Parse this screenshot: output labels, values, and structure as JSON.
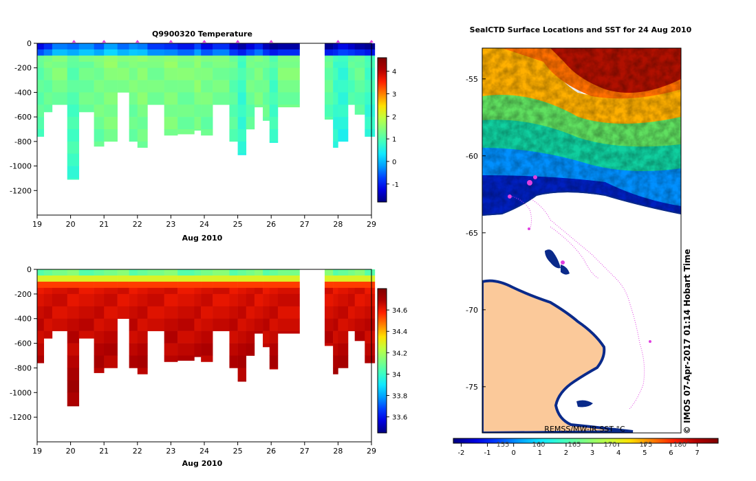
{
  "colors": {
    "jet": [
      "#00007f",
      "#0000e0",
      "#0040ff",
      "#00a0ff",
      "#10e8ff",
      "#40ffbf",
      "#80ff80",
      "#c0ff40",
      "#ffe000",
      "#ff8000",
      "#ff2000",
      "#b00000",
      "#7f0000"
    ],
    "land": "#fbc99a",
    "ice_edge": "#0a2a8a",
    "track": "#e040e0"
  },
  "chart_data": [
    {
      "id": "temperature-section",
      "type": "heatmap",
      "title": "Q9900320  Temperature",
      "xlabel": "Aug 2010",
      "ylabel": "",
      "xlim": [
        19,
        29
      ],
      "ylim": [
        -1400,
        0
      ],
      "xticks": [
        "19",
        "20",
        "21",
        "22",
        "23",
        "24",
        "25",
        "26",
        "27",
        "28",
        "29"
      ],
      "yticks": [
        "0",
        "-200",
        "-400",
        "-600",
        "-800",
        "-1000",
        "-1200"
      ],
      "colorbar": {
        "range": [
          -1.8,
          4.6
        ],
        "ticks": [
          "4",
          "3",
          "2",
          "1",
          "0",
          "-1"
        ]
      },
      "surface_markers_day": [
        20.1,
        21.0,
        22.0,
        23.0,
        24.0,
        25.0,
        26.0,
        28.0,
        29.0
      ],
      "gap_days": [
        26.85,
        27.6
      ],
      "profiles": [
        {
          "x0": 19.0,
          "x1": 19.2,
          "bottom": -760,
          "surface": -1.2,
          "deep": 1.2
        },
        {
          "x0": 19.2,
          "x1": 19.45,
          "bottom": -560,
          "surface": -0.9,
          "deep": 1.3
        },
        {
          "x0": 19.45,
          "x1": 19.9,
          "bottom": -500,
          "surface": -0.4,
          "deep": 1.4
        },
        {
          "x0": 19.9,
          "x1": 20.25,
          "bottom": -1110,
          "surface": -0.5,
          "deep": 1.1
        },
        {
          "x0": 20.25,
          "x1": 20.7,
          "bottom": -560,
          "surface": -0.3,
          "deep": 1.3
        },
        {
          "x0": 20.7,
          "x1": 21.0,
          "bottom": -840,
          "surface": -0.6,
          "deep": 1.4
        },
        {
          "x0": 21.0,
          "x1": 21.4,
          "bottom": -800,
          "surface": -0.2,
          "deep": 1.5
        },
        {
          "x0": 21.4,
          "x1": 21.75,
          "bottom": -400,
          "surface": -0.5,
          "deep": 1.4
        },
        {
          "x0": 21.75,
          "x1": 22.0,
          "bottom": -800,
          "surface": -0.3,
          "deep": 1.4
        },
        {
          "x0": 22.0,
          "x1": 22.3,
          "bottom": -850,
          "surface": -0.4,
          "deep": 1.5
        },
        {
          "x0": 22.3,
          "x1": 22.8,
          "bottom": -500,
          "surface": -0.8,
          "deep": 1.4
        },
        {
          "x0": 22.8,
          "x1": 23.2,
          "bottom": -750,
          "surface": -0.9,
          "deep": 1.5
        },
        {
          "x0": 23.2,
          "x1": 23.7,
          "bottom": -740,
          "surface": -1.1,
          "deep": 1.4
        },
        {
          "x0": 23.7,
          "x1": 23.9,
          "bottom": -710,
          "surface": -0.7,
          "deep": 1.5
        },
        {
          "x0": 23.9,
          "x1": 24.25,
          "bottom": -750,
          "surface": -1.2,
          "deep": 1.4
        },
        {
          "x0": 24.25,
          "x1": 24.75,
          "bottom": -500,
          "surface": -0.9,
          "deep": 1.4
        },
        {
          "x0": 24.75,
          "x1": 25.0,
          "bottom": -800,
          "surface": -1.4,
          "deep": 1.2
        },
        {
          "x0": 25.0,
          "x1": 25.25,
          "bottom": -910,
          "surface": -1.6,
          "deep": 0.9
        },
        {
          "x0": 25.25,
          "x1": 25.5,
          "bottom": -700,
          "surface": -1.3,
          "deep": 1.3
        },
        {
          "x0": 25.5,
          "x1": 25.75,
          "bottom": -520,
          "surface": -1.0,
          "deep": 1.4
        },
        {
          "x0": 25.75,
          "x1": 25.95,
          "bottom": -630,
          "surface": -1.5,
          "deep": 1.3
        },
        {
          "x0": 25.95,
          "x1": 26.2,
          "bottom": -810,
          "surface": -1.7,
          "deep": 1.0
        },
        {
          "x0": 26.2,
          "x1": 26.85,
          "bottom": -520,
          "surface": -1.6,
          "deep": 1.4
        },
        {
          "x0": 27.6,
          "x1": 27.85,
          "bottom": -620,
          "surface": -1.7,
          "deep": 1.2
        },
        {
          "x0": 27.85,
          "x1": 28.0,
          "bottom": -850,
          "surface": -1.5,
          "deep": 0.9
        },
        {
          "x0": 28.0,
          "x1": 28.3,
          "bottom": -800,
          "surface": -1.2,
          "deep": 0.8
        },
        {
          "x0": 28.3,
          "x1": 28.5,
          "bottom": -500,
          "surface": -1.4,
          "deep": 1.1
        },
        {
          "x0": 28.5,
          "x1": 28.8,
          "bottom": -580,
          "surface": -1.6,
          "deep": 1.2
        },
        {
          "x0": 28.8,
          "x1": 29.1,
          "bottom": -760,
          "surface": -1.7,
          "deep": 0.9
        }
      ]
    },
    {
      "id": "salinity-section",
      "type": "heatmap",
      "title": "",
      "xlabel": "Aug 2010",
      "ylabel": "",
      "xlim": [
        19,
        29
      ],
      "ylim": [
        -1400,
        0
      ],
      "xticks": [
        "19",
        "20",
        "21",
        "22",
        "23",
        "24",
        "25",
        "26",
        "27",
        "28",
        "29"
      ],
      "yticks": [
        "0",
        "-200",
        "-400",
        "-600",
        "-800",
        "-1000",
        "-1200"
      ],
      "colorbar": {
        "range": [
          33.45,
          34.8
        ],
        "ticks": [
          "34.6",
          "34.4",
          "34.2",
          "34",
          "33.8",
          "33.6"
        ]
      }
    },
    {
      "id": "sst-map",
      "type": "heatmap",
      "title": "SealCTD Surface Locations and SST for 24 Aug 2010",
      "xlabel": "",
      "ylabel": "",
      "lat_ticks": [
        "-55",
        "-60",
        "-65",
        "-70",
        "-75"
      ],
      "lat_range": [
        -78,
        -53
      ],
      "colorbar": {
        "label": "REMSS/MW-IR SST °C",
        "range": [
          -2.3,
          7.8
        ],
        "ticks": [
          "-2",
          "-1",
          "0",
          "1",
          "2",
          "3",
          "4",
          "5",
          "6",
          "7"
        ],
        "lon_ticks": [
          "155",
          "160",
          "165",
          "170",
          "175",
          "180°"
        ]
      },
      "credit": "© IMOS 07-Apr-2017 01:14 Hobart Time"
    }
  ]
}
